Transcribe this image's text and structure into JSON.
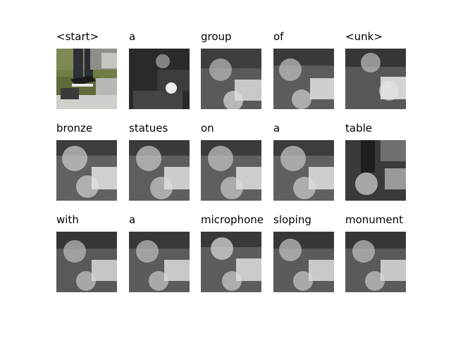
{
  "figure": {
    "panels": [
      {
        "word": "<start>"
      },
      {
        "word": "a"
      },
      {
        "word": "group"
      },
      {
        "word": "of"
      },
      {
        "word": "<unk>"
      },
      {
        "word": "bronze"
      },
      {
        "word": "statues"
      },
      {
        "word": "on"
      },
      {
        "word": "a"
      },
      {
        "word": "table"
      },
      {
        "word": "with"
      },
      {
        "word": "a"
      },
      {
        "word": "microphone"
      },
      {
        "word": "sloping"
      },
      {
        "word": "monument"
      }
    ]
  }
}
